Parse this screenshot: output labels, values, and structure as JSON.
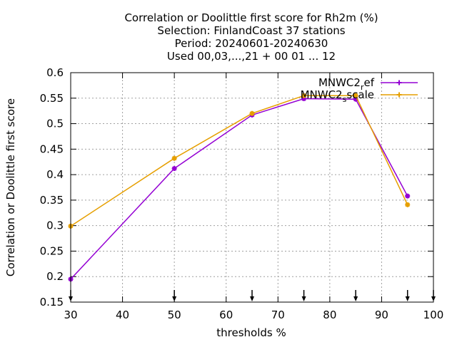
{
  "chart_data": {
    "type": "line",
    "title_lines": [
      "Correlation or Doolittle first score  for Rh2m (%)",
      "Selection: FinlandCoast      37 stations",
      "Period: 20240601-20240630",
      "Used 00,03,...,21 + 00 01 ... 12"
    ],
    "xlabel": "thresholds %",
    "ylabel": "Correlation or Doolittle first score",
    "xlim": [
      30,
      100
    ],
    "ylim": [
      0.15,
      0.6
    ],
    "xticks": [
      30,
      40,
      50,
      60,
      70,
      80,
      90,
      100
    ],
    "yticks": [
      0.15,
      0.2,
      0.25,
      0.3,
      0.35,
      0.4,
      0.45,
      0.5,
      0.55,
      0.6
    ],
    "ytick_labels": [
      "0.15",
      "0.2",
      "0.25",
      "0.3",
      "0.35",
      "0.4",
      "0.45",
      "0.5",
      "0.55",
      "0.6"
    ],
    "grid": true,
    "legend_position": "top-right",
    "threshold_arrows": [
      30,
      50,
      65,
      75,
      85,
      95,
      100
    ],
    "series": [
      {
        "name": "MNWC2_ref",
        "name_main": "MNWC2",
        "name_sub": "r",
        "name_tail": "ef",
        "color": "#9400d3",
        "x": [
          30,
          50,
          65,
          75,
          85,
          95
        ],
        "y": [
          0.195,
          0.412,
          0.517,
          0.549,
          0.548,
          0.358
        ]
      },
      {
        "name": "MNWC2_sscale",
        "name_main": "MNWC2",
        "name_sub": "s",
        "name_tail": "scale",
        "color": "#e69f00",
        "x": [
          30,
          50,
          65,
          75,
          85,
          95
        ],
        "y": [
          0.299,
          0.432,
          0.52,
          0.555,
          0.555,
          0.341
        ]
      }
    ]
  }
}
